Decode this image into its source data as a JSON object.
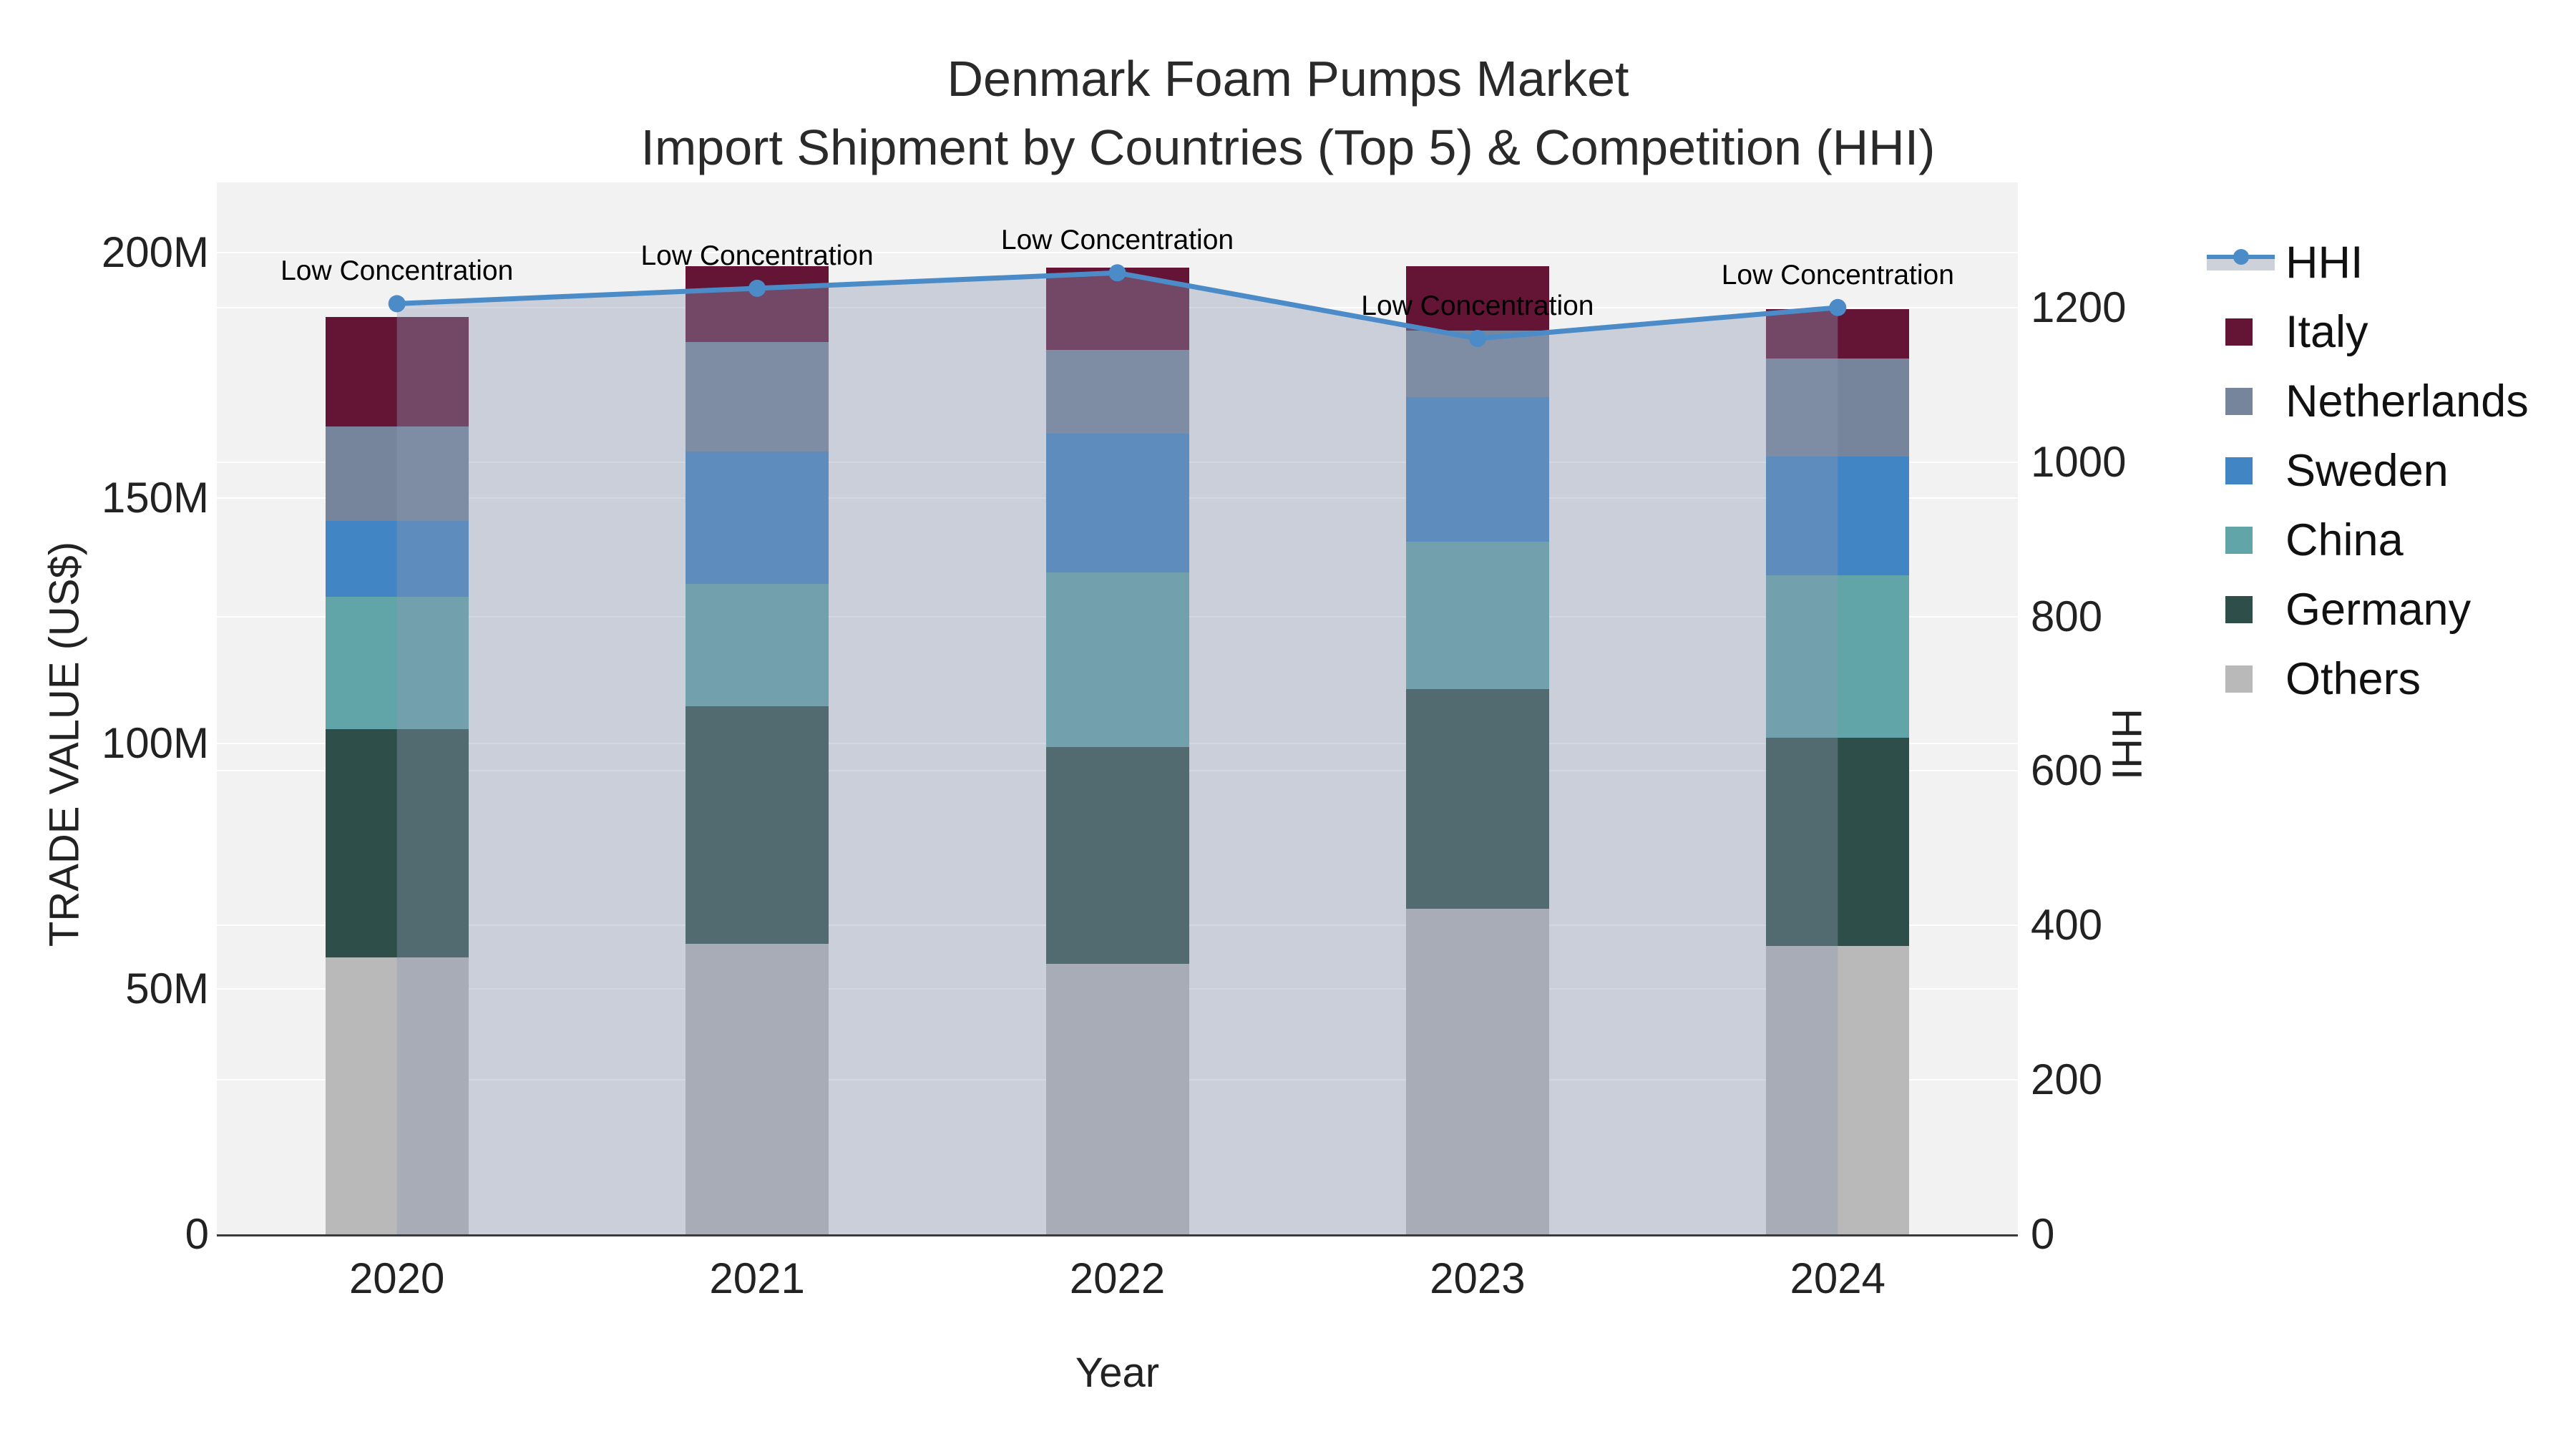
{
  "title": {
    "line1": "Denmark Foam Pumps Market",
    "line2": "Import Shipment by Countries (Top 5) & Competition (HHI)"
  },
  "axes": {
    "x": {
      "label": "Year",
      "ticks": [
        "2020",
        "2021",
        "2022",
        "2023",
        "2024"
      ]
    },
    "y_left": {
      "label": "TRADE VALUE (US$)",
      "ticks": [
        {
          "label": "0",
          "value": 0
        },
        {
          "label": "50M",
          "value": 50
        },
        {
          "label": "100M",
          "value": 100
        },
        {
          "label": "150M",
          "value": 150
        },
        {
          "label": "200M",
          "value": 200
        }
      ]
    },
    "y_right": {
      "label": "HHI",
      "ticks": [
        {
          "label": "0",
          "value": 0
        },
        {
          "label": "200",
          "value": 200
        },
        {
          "label": "400",
          "value": 400
        },
        {
          "label": "600",
          "value": 600
        },
        {
          "label": "800",
          "value": 800
        },
        {
          "label": "1000",
          "value": 1000
        },
        {
          "label": "1200",
          "value": 1200
        }
      ]
    }
  },
  "legend": {
    "items": [
      {
        "label": "HHI",
        "type": "line",
        "color": "#4b8cc8"
      },
      {
        "label": "Italy",
        "type": "swatch",
        "color": "#641536"
      },
      {
        "label": "Netherlands",
        "type": "swatch",
        "color": "#76859c"
      },
      {
        "label": "Sweden",
        "type": "swatch",
        "color": "#4285c4"
      },
      {
        "label": "China",
        "type": "swatch",
        "color": "#62a5a8"
      },
      {
        "label": "Germany",
        "type": "swatch",
        "color": "#2e4f49"
      },
      {
        "label": "Others",
        "type": "swatch",
        "color": "#b9b9b9"
      }
    ]
  },
  "annotations": {
    "text": "Low Concentration"
  },
  "chart_data": {
    "type": "bar+line",
    "categories": [
      "2020",
      "2021",
      "2022",
      "2023",
      "2024"
    ],
    "stack_order_bottom_to_top": [
      "Others",
      "Germany",
      "China",
      "Sweden",
      "Netherlands",
      "Italy"
    ],
    "series": [
      {
        "name": "Others",
        "color": "#b9b9b9",
        "values": [
          56.4,
          59.2,
          55.1,
          66.3,
          58.8
        ]
      },
      {
        "name": "Germany",
        "color": "#2e4f49",
        "values": [
          46.5,
          48.4,
          44.2,
          44.8,
          42.4
        ]
      },
      {
        "name": "China",
        "color": "#62a5a8",
        "values": [
          27.0,
          24.9,
          35.5,
          30.0,
          33.1
        ]
      },
      {
        "name": "Sweden",
        "color": "#4285c4",
        "values": [
          15.4,
          27.0,
          28.3,
          29.5,
          24.2
        ]
      },
      {
        "name": "Netherlands",
        "color": "#76859c",
        "values": [
          19.3,
          22.3,
          17.1,
          13.5,
          19.9
        ]
      },
      {
        "name": "Italy",
        "color": "#641536",
        "values": [
          22.3,
          15.4,
          16.7,
          13.1,
          10.1
        ]
      }
    ],
    "bar_totals": [
      186.9,
      197.2,
      196.9,
      197.2,
      188.5
    ],
    "line_series": {
      "name": "HHI",
      "axis": "right",
      "color": "#4b8cc8",
      "area_fill_color": "rgba(140,153,178,0.39)",
      "values": [
        1205,
        1225,
        1245,
        1160,
        1200
      ],
      "point_annotations": [
        "Low Concentration",
        "Low Concentration",
        "Low Concentration",
        "Low Concentration",
        "Low Concentration"
      ]
    },
    "units": {
      "bars": "M US$ trade value",
      "line": "HHI index"
    },
    "xlabel": "Year",
    "ylabel_left": "TRADE VALUE (US$)",
    "ylabel_right": "HHI",
    "ylim_left": [
      0,
      214.3
    ],
    "ylim_right": [
      0,
      1362
    ],
    "grid": true,
    "legend_position": "right"
  },
  "style": {
    "plot_bg": "#f2f2f2",
    "grid_color": "#ffffff",
    "axis_line_color": "#3a3a3a",
    "text_color": "#222222"
  }
}
